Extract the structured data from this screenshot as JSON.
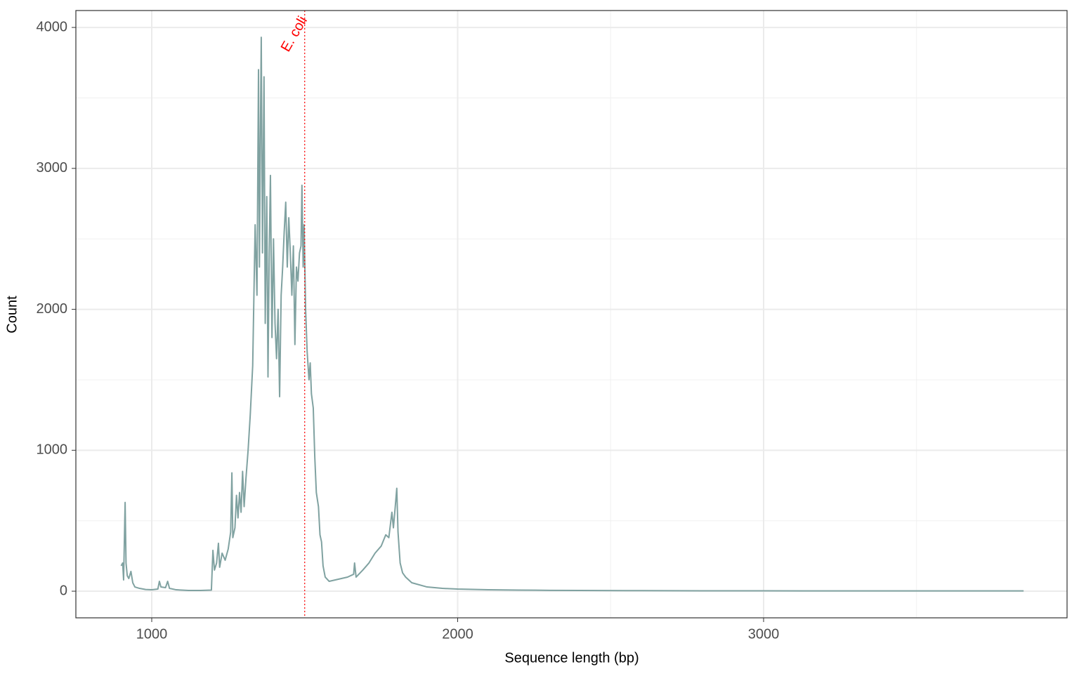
{
  "chart_data": {
    "type": "line",
    "xlabel": "Sequence length (bp)",
    "ylabel": "Count",
    "x": [
      900,
      905,
      908,
      913,
      916,
      920,
      925,
      932,
      938,
      945,
      960,
      980,
      1000,
      1020,
      1025,
      1030,
      1045,
      1052,
      1058,
      1080,
      1120,
      1160,
      1195,
      1200,
      1205,
      1212,
      1218,
      1222,
      1230,
      1240,
      1250,
      1258,
      1262,
      1265,
      1272,
      1277,
      1282,
      1287,
      1292,
      1297,
      1302,
      1308,
      1315,
      1322,
      1330,
      1338,
      1344,
      1349,
      1352,
      1355,
      1358,
      1362,
      1367,
      1371,
      1376,
      1380,
      1384,
      1388,
      1393,
      1398,
      1403,
      1408,
      1413,
      1418,
      1423,
      1428,
      1433,
      1438,
      1443,
      1448,
      1453,
      1458,
      1463,
      1468,
      1473,
      1478,
      1483,
      1488,
      1491,
      1495,
      1498,
      1503,
      1508,
      1514,
      1518,
      1522,
      1528,
      1533,
      1538,
      1545,
      1550,
      1555,
      1560,
      1567,
      1580,
      1600,
      1620,
      1640,
      1660,
      1663,
      1668,
      1690,
      1710,
      1730,
      1750,
      1765,
      1775,
      1785,
      1790,
      1796,
      1801,
      1805,
      1812,
      1820,
      1830,
      1850,
      1900,
      1950,
      2000,
      2100,
      2200,
      2300,
      2400,
      2600,
      2800,
      3000,
      3200,
      3400,
      3600,
      3850
    ],
    "series": [
      {
        "color": "#80a2a1",
        "values": [
          180,
          200,
          80,
          630,
          200,
          110,
          90,
          140,
          60,
          30,
          20,
          12,
          10,
          15,
          70,
          30,
          25,
          70,
          20,
          10,
          5,
          5,
          8,
          290,
          150,
          200,
          340,
          170,
          270,
          220,
          300,
          420,
          840,
          380,
          450,
          680,
          520,
          700,
          560,
          850,
          600,
          800,
          1000,
          1250,
          1600,
          2600,
          2100,
          3700,
          2300,
          3200,
          3930,
          2400,
          3650,
          1900,
          2800,
          1520,
          2400,
          2950,
          1800,
          2500,
          1900,
          1650,
          2000,
          1380,
          2100,
          2300,
          2550,
          2760,
          2300,
          2650,
          2400,
          2100,
          2450,
          1750,
          2300,
          2200,
          2400,
          2450,
          2880,
          2300,
          2600,
          2000,
          1700,
          1500,
          1620,
          1400,
          1300,
          950,
          700,
          600,
          400,
          350,
          180,
          100,
          70,
          80,
          90,
          100,
          120,
          200,
          100,
          150,
          200,
          270,
          320,
          400,
          380,
          560,
          450,
          600,
          730,
          420,
          200,
          130,
          100,
          60,
          30,
          20,
          15,
          10,
          8,
          6,
          5,
          4,
          3,
          3,
          2,
          2,
          2,
          2
        ]
      }
    ],
    "xlim": [
      752,
      3992
    ],
    "ylim": [
      -189,
      4120
    ],
    "xticks": [
      1000,
      2000,
      3000
    ],
    "yticks": [
      0,
      1000,
      2000,
      3000,
      4000
    ],
    "xminorticks": [
      1500,
      2500,
      3500
    ],
    "yminorticks": [
      500,
      1500,
      2500,
      3500
    ],
    "grid": true,
    "vline": {
      "x": 1500,
      "label": "E. coli",
      "color": "#ff0000"
    }
  }
}
